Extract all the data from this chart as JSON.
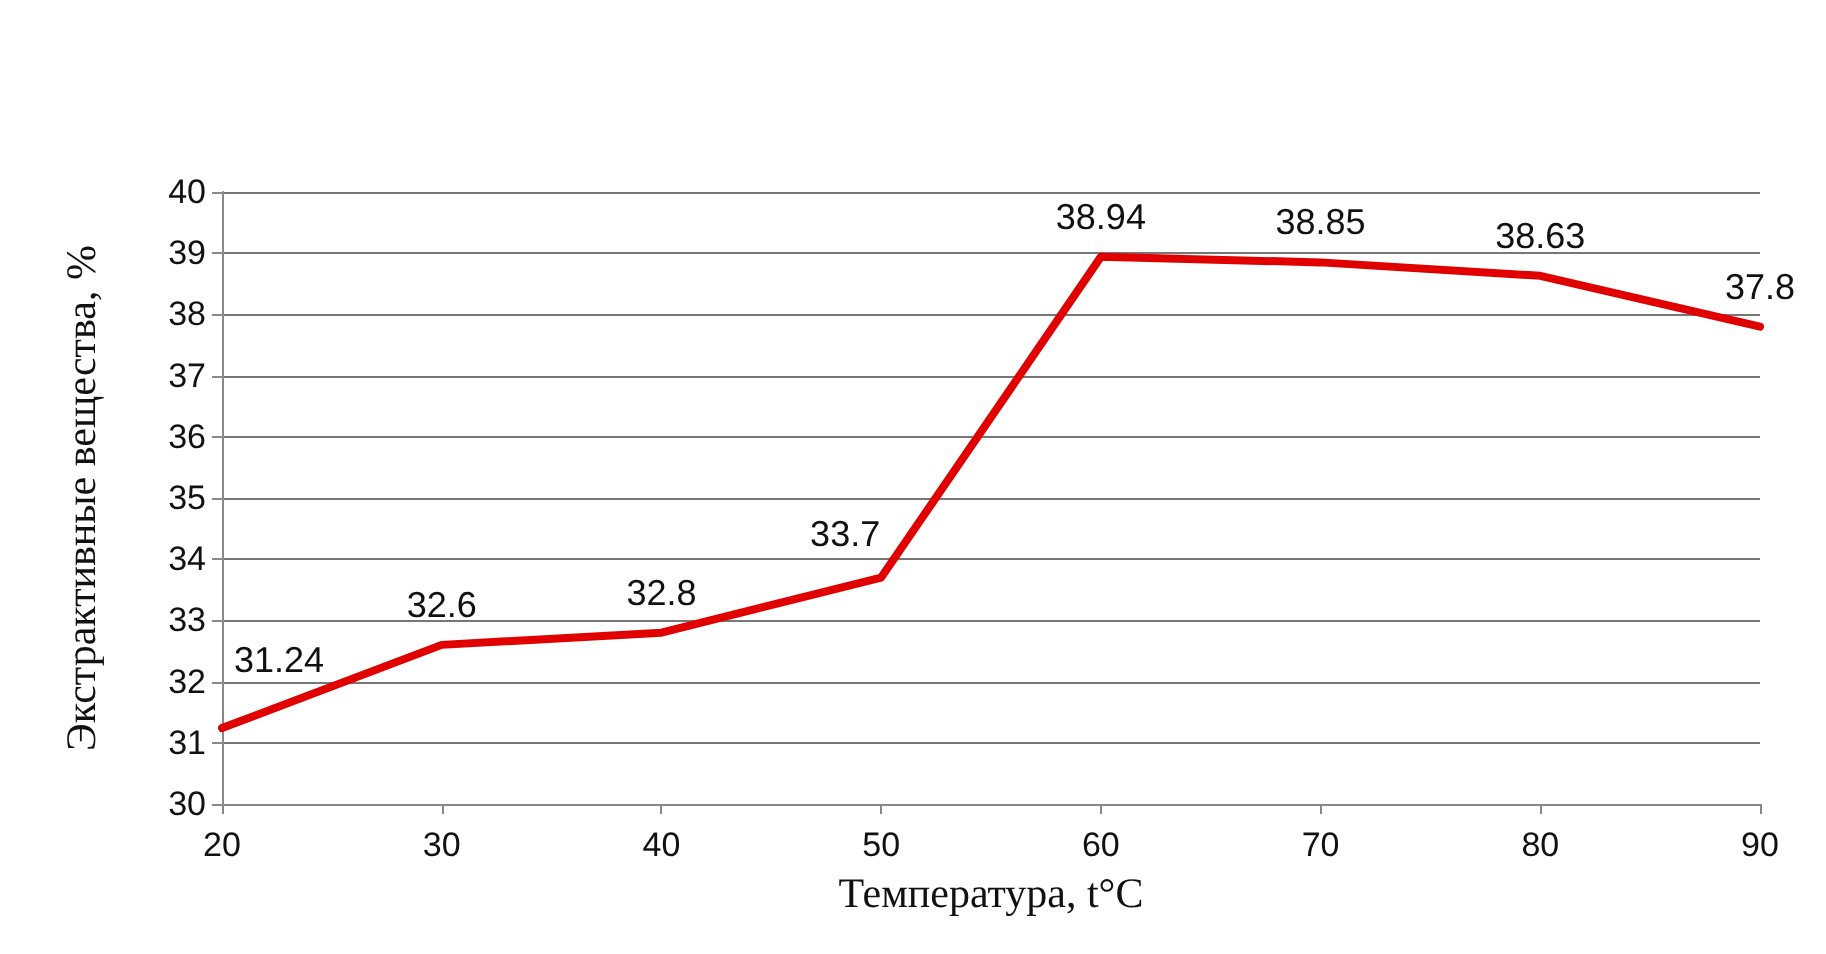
{
  "chart_data": {
    "type": "line",
    "xlabel": "Температура, t°C",
    "ylabel": "Экстрактивные вещества, %",
    "x": [
      20,
      30,
      40,
      50,
      60,
      70,
      80,
      90
    ],
    "series": [
      {
        "color": "#e00000",
        "values": [
          31.24,
          32.6,
          32.8,
          33.7,
          38.94,
          38.85,
          38.63,
          37.8
        ]
      }
    ],
    "xlim": [
      20,
      90
    ],
    "xticks": [
      20,
      30,
      40,
      50,
      60,
      70,
      80,
      90
    ],
    "ylim": [
      30,
      40
    ],
    "yticks": [
      30,
      31,
      32,
      33,
      34,
      35,
      36,
      37,
      38,
      39,
      40
    ],
    "grid": "y",
    "marker": "none",
    "line_style": "solid",
    "data_labels": true
  }
}
